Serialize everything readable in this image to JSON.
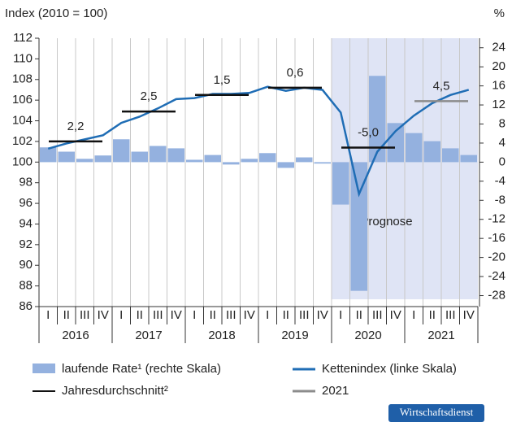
{
  "chart_data": {
    "type": "bar-line",
    "title": "Index (2010 = 100)",
    "y2_title": "%",
    "categories": [
      "I",
      "II",
      "III",
      "IV",
      "I",
      "II",
      "III",
      "IV",
      "I",
      "II",
      "III",
      "IV",
      "I",
      "II",
      "III",
      "IV",
      "I",
      "II",
      "III",
      "IV",
      "I",
      "II",
      "III",
      "IV"
    ],
    "years": [
      "2016",
      "2017",
      "2018",
      "2019",
      "2020",
      "2021"
    ],
    "ylim": [
      86,
      112
    ],
    "yticks": [
      86,
      88,
      90,
      92,
      94,
      96,
      98,
      100,
      102,
      104,
      106,
      108,
      110,
      112
    ],
    "y2lim": [
      -30.3,
      26
    ],
    "y2ticks": [
      -28,
      -24,
      -20,
      -16,
      -12,
      -8,
      -4,
      0,
      4,
      8,
      12,
      16,
      20,
      24
    ],
    "series": [
      {
        "name": "laufende Rate¹ (rechte Skala)",
        "type": "bar",
        "axis": "y2",
        "color": "#94b1df",
        "values": [
          3.1,
          2.2,
          0.7,
          1.4,
          4.8,
          2.2,
          3.4,
          2.9,
          0.5,
          1.5,
          -0.5,
          0.7,
          1.9,
          -1.2,
          1.0,
          -0.3,
          -8.9,
          -27,
          18.1,
          8.2,
          6.1,
          4.4,
          2.9,
          1.5
        ]
      },
      {
        "name": "Kettenindex (linke Skala)",
        "type": "line",
        "axis": "y",
        "color": "#1f6db5",
        "values": [
          101.3,
          101.8,
          102.2,
          102.6,
          103.8,
          104.4,
          105.2,
          106.1,
          106.2,
          106.6,
          106.6,
          106.7,
          107.3,
          106.9,
          107.2,
          107.0,
          104.8,
          96.9,
          101.0,
          103.0,
          104.5,
          105.7,
          106.5,
          107.0
        ]
      }
    ],
    "annual_averages": {
      "name": "Jahresdurchschnitt²",
      "color": "#111111",
      "values": [
        102.0,
        104.9,
        106.5,
        107.2,
        101.4,
        105.9
      ],
      "growth": [
        2.2,
        2.5,
        1.5,
        0.6,
        -5.0,
        4.5
      ],
      "value_labels": [
        "2,2",
        "2,5",
        "1,5",
        "0,6",
        "-5,0",
        "4,5"
      ]
    },
    "forecast_legend": {
      "name": "2021",
      "color": "#8c8c8c"
    },
    "forecast_label": "Prognose",
    "forecast_color": "#dfe4f5",
    "source": "Wirtschaftsdienst"
  }
}
